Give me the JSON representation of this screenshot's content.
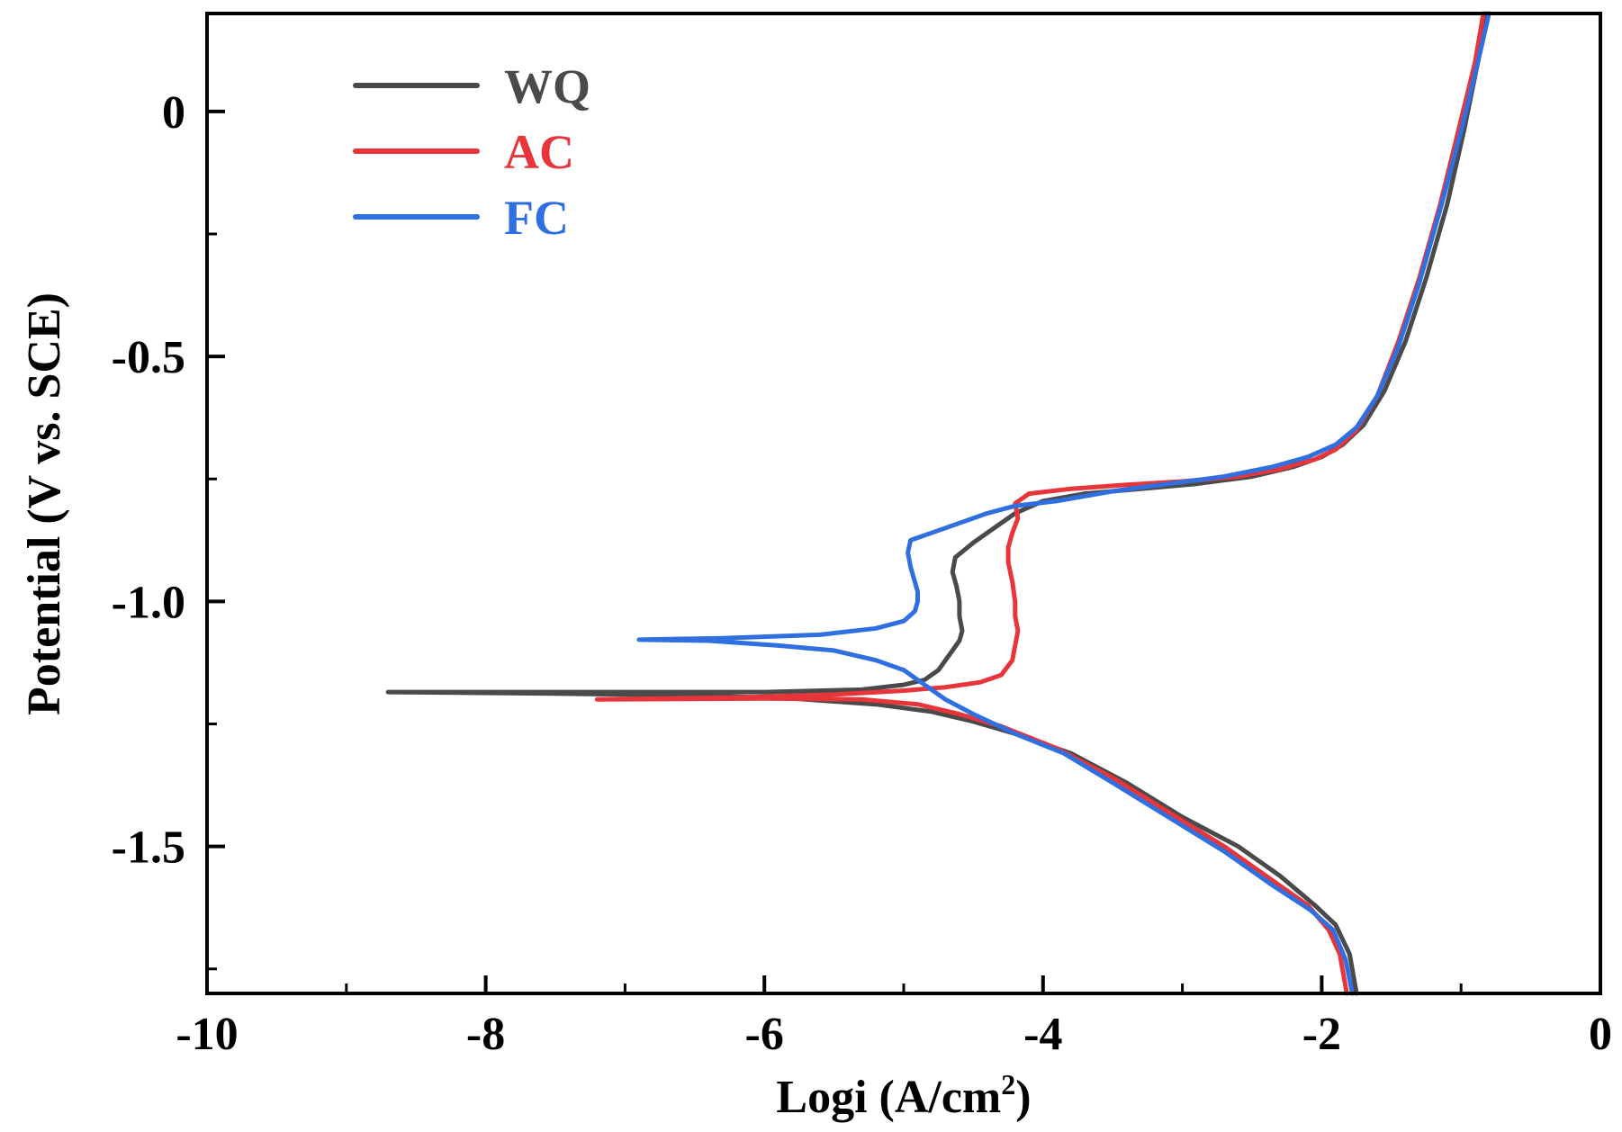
{
  "chart_data": {
    "type": "line",
    "title": "",
    "xlabel_main": "Logi (A/cm",
    "xlabel_sup": "2",
    "xlabel_end": ")",
    "ylabel": "Potential (V vs. SCE)",
    "xlim": [
      -10,
      0
    ],
    "ylim": [
      -1.8,
      0.2
    ],
    "x_ticks": [
      -10,
      -8,
      -6,
      -4,
      -2,
      0
    ],
    "x_tick_labels": [
      "-10",
      "-8",
      "-6",
      "-4",
      "-2",
      "0"
    ],
    "y_ticks": [
      0,
      -0.5,
      -1.0,
      -1.5
    ],
    "y_tick_labels": [
      "0",
      "-0.5",
      "-1.0",
      "-1.5"
    ],
    "legend_position": "top-left",
    "series": [
      {
        "name": "WQ",
        "color": "#4a4a4a",
        "points": [
          [
            -1.75,
            -1.8
          ],
          [
            -1.8,
            -1.72
          ],
          [
            -1.9,
            -1.66
          ],
          [
            -2.05,
            -1.62
          ],
          [
            -2.3,
            -1.56
          ],
          [
            -2.6,
            -1.5
          ],
          [
            -3.0,
            -1.44
          ],
          [
            -3.4,
            -1.37
          ],
          [
            -3.8,
            -1.31
          ],
          [
            -4.2,
            -1.27
          ],
          [
            -4.5,
            -1.245
          ],
          [
            -4.8,
            -1.225
          ],
          [
            -5.2,
            -1.21
          ],
          [
            -5.8,
            -1.198
          ],
          [
            -6.5,
            -1.192
          ],
          [
            -7.5,
            -1.188
          ],
          [
            -8.7,
            -1.185
          ],
          [
            -6.0,
            -1.185
          ],
          [
            -5.3,
            -1.18
          ],
          [
            -5.0,
            -1.17
          ],
          [
            -4.85,
            -1.16
          ],
          [
            -4.75,
            -1.14
          ],
          [
            -4.7,
            -1.12
          ],
          [
            -4.65,
            -1.1
          ],
          [
            -4.6,
            -1.08
          ],
          [
            -4.58,
            -1.06
          ],
          [
            -4.6,
            -1.03
          ],
          [
            -4.6,
            -1.0
          ],
          [
            -4.62,
            -0.97
          ],
          [
            -4.65,
            -0.94
          ],
          [
            -4.63,
            -0.91
          ],
          [
            -4.5,
            -0.88
          ],
          [
            -4.35,
            -0.85
          ],
          [
            -4.2,
            -0.82
          ],
          [
            -4.0,
            -0.795
          ],
          [
            -3.7,
            -0.78
          ],
          [
            -3.3,
            -0.77
          ],
          [
            -2.9,
            -0.76
          ],
          [
            -2.5,
            -0.745
          ],
          [
            -2.2,
            -0.725
          ],
          [
            -2.0,
            -0.705
          ],
          [
            -1.85,
            -0.68
          ],
          [
            -1.7,
            -0.64
          ],
          [
            -1.55,
            -0.57
          ],
          [
            -1.4,
            -0.47
          ],
          [
            -1.25,
            -0.34
          ],
          [
            -1.1,
            -0.19
          ],
          [
            -0.98,
            -0.04
          ],
          [
            -0.88,
            0.1
          ],
          [
            -0.82,
            0.2
          ]
        ]
      },
      {
        "name": "AC",
        "color": "#e8353a",
        "points": [
          [
            -1.82,
            -1.8
          ],
          [
            -1.87,
            -1.72
          ],
          [
            -1.95,
            -1.67
          ],
          [
            -2.1,
            -1.62
          ],
          [
            -2.35,
            -1.57
          ],
          [
            -2.7,
            -1.5
          ],
          [
            -3.1,
            -1.43
          ],
          [
            -3.5,
            -1.36
          ],
          [
            -3.9,
            -1.3
          ],
          [
            -4.3,
            -1.255
          ],
          [
            -4.6,
            -1.23
          ],
          [
            -4.9,
            -1.21
          ],
          [
            -5.3,
            -1.2
          ],
          [
            -6.0,
            -1.198
          ],
          [
            -7.2,
            -1.2
          ],
          [
            -6.2,
            -1.196
          ],
          [
            -5.5,
            -1.19
          ],
          [
            -5.0,
            -1.182
          ],
          [
            -4.7,
            -1.175
          ],
          [
            -4.45,
            -1.165
          ],
          [
            -4.3,
            -1.15
          ],
          [
            -4.22,
            -1.12
          ],
          [
            -4.2,
            -1.09
          ],
          [
            -4.18,
            -1.06
          ],
          [
            -4.2,
            -1.03
          ],
          [
            -4.2,
            -1.0
          ],
          [
            -4.22,
            -0.96
          ],
          [
            -4.25,
            -0.92
          ],
          [
            -4.25,
            -0.89
          ],
          [
            -4.22,
            -0.86
          ],
          [
            -4.18,
            -0.83
          ],
          [
            -4.2,
            -0.8
          ],
          [
            -4.1,
            -0.78
          ],
          [
            -3.8,
            -0.77
          ],
          [
            -3.4,
            -0.762
          ],
          [
            -3.0,
            -0.755
          ],
          [
            -2.6,
            -0.745
          ],
          [
            -2.3,
            -0.73
          ],
          [
            -2.05,
            -0.71
          ],
          [
            -1.9,
            -0.69
          ],
          [
            -1.75,
            -0.65
          ],
          [
            -1.6,
            -0.58
          ],
          [
            -1.45,
            -0.47
          ],
          [
            -1.3,
            -0.34
          ],
          [
            -1.15,
            -0.19
          ],
          [
            -1.02,
            -0.04
          ],
          [
            -0.9,
            0.1
          ],
          [
            -0.84,
            0.2
          ]
        ]
      },
      {
        "name": "FC",
        "color": "#2f6fe0",
        "points": [
          [
            -1.78,
            -1.8
          ],
          [
            -1.83,
            -1.73
          ],
          [
            -1.92,
            -1.67
          ],
          [
            -2.08,
            -1.63
          ],
          [
            -2.35,
            -1.58
          ],
          [
            -2.7,
            -1.51
          ],
          [
            -3.1,
            -1.44
          ],
          [
            -3.5,
            -1.37
          ],
          [
            -3.85,
            -1.31
          ],
          [
            -4.2,
            -1.27
          ],
          [
            -4.5,
            -1.23
          ],
          [
            -4.7,
            -1.2
          ],
          [
            -4.85,
            -1.17
          ],
          [
            -5.0,
            -1.14
          ],
          [
            -5.2,
            -1.12
          ],
          [
            -5.5,
            -1.1
          ],
          [
            -5.9,
            -1.09
          ],
          [
            -6.4,
            -1.08
          ],
          [
            -6.9,
            -1.078
          ],
          [
            -6.3,
            -1.075
          ],
          [
            -5.6,
            -1.068
          ],
          [
            -5.2,
            -1.055
          ],
          [
            -5.0,
            -1.04
          ],
          [
            -4.92,
            -1.02
          ],
          [
            -4.9,
            -1.0
          ],
          [
            -4.9,
            -0.98
          ],
          [
            -4.92,
            -0.96
          ],
          [
            -4.95,
            -0.93
          ],
          [
            -4.97,
            -0.9
          ],
          [
            -4.95,
            -0.875
          ],
          [
            -4.8,
            -0.86
          ],
          [
            -4.6,
            -0.84
          ],
          [
            -4.4,
            -0.82
          ],
          [
            -4.2,
            -0.805
          ],
          [
            -3.9,
            -0.795
          ],
          [
            -3.5,
            -0.775
          ],
          [
            -3.1,
            -0.76
          ],
          [
            -2.7,
            -0.745
          ],
          [
            -2.35,
            -0.725
          ],
          [
            -2.1,
            -0.705
          ],
          [
            -1.9,
            -0.68
          ],
          [
            -1.75,
            -0.645
          ],
          [
            -1.6,
            -0.58
          ],
          [
            -1.45,
            -0.48
          ],
          [
            -1.3,
            -0.35
          ],
          [
            -1.15,
            -0.2
          ],
          [
            -1.0,
            -0.04
          ],
          [
            -0.88,
            0.1
          ],
          [
            -0.8,
            0.2
          ]
        ]
      }
    ]
  }
}
